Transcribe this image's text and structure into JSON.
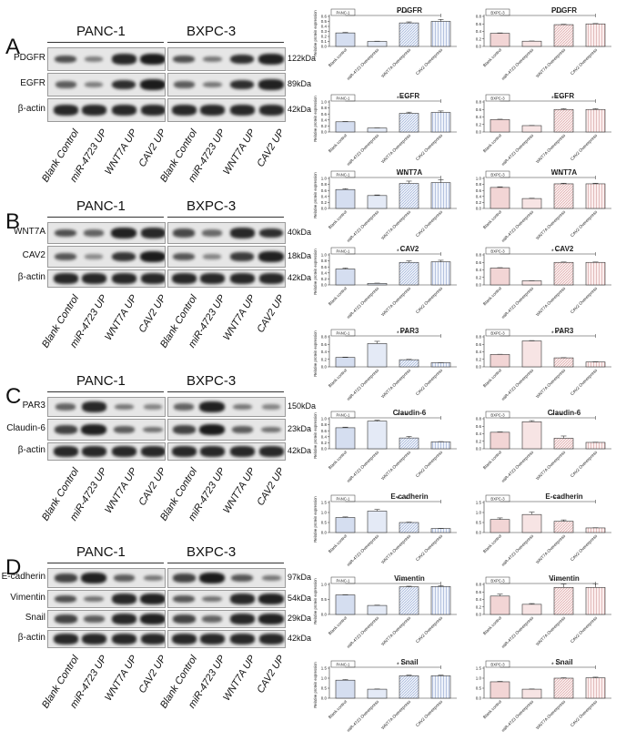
{
  "panels": [
    {
      "letter": "A",
      "cells": [
        "PANC-1",
        "BXPC-3"
      ],
      "rows": [
        {
          "label": "PDGFR",
          "kda": "122kDa",
          "pattern": [
            0.6,
            0.25,
            0.9,
            1.0,
            0.6,
            0.3,
            0.85,
            0.95
          ]
        },
        {
          "label": "EGFR",
          "kda": "89kDa",
          "pattern": [
            0.5,
            0.25,
            0.85,
            1.0,
            0.5,
            0.3,
            0.85,
            0.95
          ]
        },
        {
          "label": "β-actin",
          "kda": "42kDa",
          "pattern": [
            0.9,
            0.9,
            0.9,
            0.9,
            0.9,
            0.9,
            0.9,
            0.9
          ]
        }
      ],
      "lanes": [
        "Blank Control",
        "miR-4723 UP",
        "WNT7A UP",
        "CAV2 UP"
      ]
    },
    {
      "letter": "B",
      "cells": [
        "PANC-1",
        "BXPC-3"
      ],
      "rows": [
        {
          "label": "WNT7A",
          "kda": "40kDa",
          "pattern": [
            0.6,
            0.45,
            0.95,
            0.9,
            0.65,
            0.4,
            0.9,
            0.85
          ]
        },
        {
          "label": "CAV2",
          "kda": "18kDa",
          "pattern": [
            0.55,
            0.15,
            0.8,
            1.0,
            0.55,
            0.2,
            0.75,
            0.95
          ]
        },
        {
          "label": "β-actin",
          "kda": "42kDa",
          "pattern": [
            0.9,
            0.9,
            0.9,
            0.9,
            0.9,
            0.9,
            0.9,
            0.9
          ]
        }
      ],
      "lanes": [
        "Blank Control",
        "miR-4723 UP",
        "WNT7A UP",
        "CAV2 UP"
      ]
    },
    {
      "letter": "C",
      "cells": [
        "PANC-1",
        "BXPC-3"
      ],
      "rows": [
        {
          "label": "PAR3",
          "kda": "150kDa",
          "pattern": [
            0.45,
            0.9,
            0.3,
            0.2,
            0.45,
            0.95,
            0.3,
            0.2
          ]
        },
        {
          "label": "Claudin-6",
          "kda": "23kDa",
          "pattern": [
            0.7,
            0.95,
            0.5,
            0.35,
            0.7,
            1.0,
            0.5,
            0.35
          ]
        },
        {
          "label": "β-actin",
          "kda": "42kDa",
          "pattern": [
            0.9,
            0.9,
            0.9,
            0.9,
            0.9,
            0.9,
            0.9,
            0.9
          ]
        }
      ],
      "lanes": [
        "Blank Control",
        "miR-4723 UP",
        "WNT7A UP",
        "CAV2 UP"
      ]
    },
    {
      "letter": "D",
      "cells": [
        "PANC-1",
        "BXPC-3"
      ],
      "rows": [
        {
          "label": "E-cadherin",
          "kda": "97kDa",
          "pattern": [
            0.7,
            0.95,
            0.5,
            0.3,
            0.7,
            1.0,
            0.55,
            0.3
          ]
        },
        {
          "label": "Vimentin",
          "kda": "54kDa",
          "pattern": [
            0.6,
            0.35,
            0.9,
            0.95,
            0.55,
            0.35,
            0.9,
            0.95
          ]
        },
        {
          "label": "Snail",
          "kda": "29kDa",
          "pattern": [
            0.7,
            0.5,
            0.9,
            0.95,
            0.7,
            0.45,
            0.9,
            0.95
          ]
        },
        {
          "label": "β-actin",
          "kda": "42kDa",
          "pattern": [
            0.9,
            0.9,
            0.9,
            0.9,
            0.9,
            0.9,
            0.9,
            0.9
          ]
        }
      ],
      "lanes": [
        "Blank Control",
        "miR-4723 UP",
        "WNT7A UP",
        "CAV2 UP"
      ]
    }
  ],
  "chart_data": [
    {
      "type": "bar",
      "title": "PDGFR",
      "tag": "PANC-1",
      "ylabel": "Relative protein expression",
      "ylim": [
        0,
        0.6
      ],
      "yticks": [
        "0.0",
        "0.1",
        "0.2",
        "0.3",
        "0.4",
        "0.5",
        "0.6"
      ],
      "categories": [
        "Blank control",
        "miR-4723 Overexpress",
        "WNT7A Overexpress",
        "CAV2 Overexpress"
      ],
      "values": [
        0.27,
        0.1,
        0.47,
        0.5
      ],
      "errors": [
        0.01,
        0.005,
        0.02,
        0.04
      ],
      "sig": "* * *",
      "color": "#b8c8e6"
    },
    {
      "type": "bar",
      "title": "PDGFR",
      "tag": "BXPC-3",
      "ylabel": "",
      "ylim": [
        0,
        0.8
      ],
      "yticks": [
        "0.0",
        "0.2",
        "0.4",
        "0.6",
        "0.8"
      ],
      "categories": [
        "Blank control",
        "miR-4723 Overexpress",
        "WNT7A Overexpress",
        "CAV2 Overexpress"
      ],
      "values": [
        0.35,
        0.14,
        0.58,
        0.6
      ],
      "errors": [
        0.01,
        0.005,
        0.01,
        0.01
      ],
      "sig": "* * *",
      "color": "#e8b8b8"
    },
    {
      "type": "bar",
      "title": "EGFR",
      "tag": "PANC-1",
      "ylabel": "Relative protein expression",
      "ylim": [
        0,
        1.0
      ],
      "yticks": [
        "0.0",
        "0.2",
        "0.4",
        "0.6",
        "0.8",
        "1.0"
      ],
      "categories": [
        "Blank control",
        "miR-4723 Overexpress",
        "WNT7A Overexpress",
        "CAV2 Overexpress"
      ],
      "values": [
        0.34,
        0.13,
        0.62,
        0.65
      ],
      "errors": [
        0.01,
        0.005,
        0.04,
        0.05
      ],
      "sig": "* * *",
      "color": "#b8c8e6"
    },
    {
      "type": "bar",
      "title": "EGFR",
      "tag": "BXPC-3",
      "ylabel": "",
      "ylim": [
        0,
        0.8
      ],
      "yticks": [
        "0.0",
        "0.2",
        "0.4",
        "0.6",
        "0.8"
      ],
      "categories": [
        "Blank control",
        "miR-4723 Overexpress",
        "WNT7A Overexpress",
        "CAV2 Overexpress"
      ],
      "values": [
        0.33,
        0.17,
        0.6,
        0.6
      ],
      "errors": [
        0.01,
        0.005,
        0.02,
        0.02
      ],
      "sig": "* * *",
      "color": "#e8b8b8"
    },
    {
      "type": "bar",
      "title": "WNT7A",
      "tag": "PANC-1",
      "ylabel": "Relative protein expression",
      "ylim": [
        0,
        1.0
      ],
      "yticks": [
        "0.0",
        "0.2",
        "0.4",
        "0.6",
        "0.8",
        "1.0"
      ],
      "categories": [
        "Blank control",
        "miR-4723 Overexpress",
        "WNT7A Overexpress",
        "CAV2 Overexpress"
      ],
      "values": [
        0.63,
        0.43,
        0.83,
        0.86
      ],
      "errors": [
        0.03,
        0.02,
        0.08,
        0.1
      ],
      "sig": "* * *",
      "color": "#b8c8e6"
    },
    {
      "type": "bar",
      "title": "WNT7A",
      "tag": "BXPC-3",
      "ylabel": "",
      "ylim": [
        0,
        1.0
      ],
      "yticks": [
        "0.0",
        "0.2",
        "0.4",
        "0.6",
        "0.8",
        "1.0"
      ],
      "categories": [
        "Blank control",
        "miR-4723 Overexpress",
        "WNT7A Overexpress",
        "CAV2 Overexpress"
      ],
      "values": [
        0.7,
        0.33,
        0.82,
        0.82
      ],
      "errors": [
        0.02,
        0.01,
        0.02,
        0.02
      ],
      "sig": "* * *",
      "color": "#e8b8b8"
    },
    {
      "type": "bar",
      "title": "CAV2",
      "tag": "PANC-1",
      "ylabel": "Relative protein expression",
      "ylim": [
        0,
        1.0
      ],
      "yticks": [
        "0.0",
        "0.2",
        "0.4",
        "0.6",
        "0.8",
        "1.0"
      ],
      "categories": [
        "Blank control",
        "miR-4723 Overexpress",
        "WNT7A Overexpress",
        "CAV2 Overexpress"
      ],
      "values": [
        0.53,
        0.05,
        0.75,
        0.77
      ],
      "errors": [
        0.03,
        0.01,
        0.05,
        0.05
      ],
      "sig": "* * *",
      "color": "#b8c8e6"
    },
    {
      "type": "bar",
      "title": "CAV2",
      "tag": "BXPC-3",
      "ylabel": "",
      "ylim": [
        0,
        0.8
      ],
      "yticks": [
        "0.0",
        "0.2",
        "0.4",
        "0.6",
        "0.8"
      ],
      "categories": [
        "Blank control",
        "miR-4723 Overexpress",
        "WNT7A Overexpress",
        "CAV2 Overexpress"
      ],
      "values": [
        0.45,
        0.11,
        0.6,
        0.6
      ],
      "errors": [
        0.01,
        0.005,
        0.01,
        0.01
      ],
      "sig": "* * *",
      "color": "#e8b8b8"
    },
    {
      "type": "bar",
      "title": "PAR3",
      "tag": "PANC-1",
      "ylabel": "Relative protein expression",
      "ylim": [
        0,
        0.8
      ],
      "yticks": [
        "0.0",
        "0.2",
        "0.4",
        "0.6",
        "0.8"
      ],
      "categories": [
        "Blank control",
        "miR-4723 Overexpress",
        "WNT7A Overexpress",
        "CAV2 Overexpress"
      ],
      "values": [
        0.25,
        0.62,
        0.19,
        0.11
      ],
      "errors": [
        0.01,
        0.06,
        0.01,
        0.005
      ],
      "sig": "* * *",
      "color": "#b8c8e6"
    },
    {
      "type": "bar",
      "title": "PAR3",
      "tag": "BXPC-3",
      "ylabel": "",
      "ylim": [
        0,
        0.8
      ],
      "yticks": [
        "0.0",
        "0.2",
        "0.4",
        "0.6",
        "0.8"
      ],
      "categories": [
        "Blank control",
        "miR-4723 Overexpress",
        "WNT7A Overexpress",
        "CAV2 Overexpress"
      ],
      "values": [
        0.33,
        0.69,
        0.24,
        0.13
      ],
      "errors": [
        0.005,
        0.01,
        0.005,
        0.005
      ],
      "sig": "* * *",
      "color": "#e8b8b8"
    },
    {
      "type": "bar",
      "title": "Claudin-6",
      "tag": "PANC-1",
      "ylabel": "Relative protein expression",
      "ylim": [
        0,
        1.0
      ],
      "yticks": [
        "0.0",
        "0.2",
        "0.4",
        "0.6",
        "0.8",
        "1.0"
      ],
      "categories": [
        "Blank control",
        "miR-4723 Overexpress",
        "WNT7A Overexpress",
        "CAV2 Overexpress"
      ],
      "values": [
        0.7,
        0.92,
        0.36,
        0.23
      ],
      "errors": [
        0.02,
        0.03,
        0.05,
        0.01
      ],
      "sig": "* * *",
      "color": "#b8c8e6"
    },
    {
      "type": "bar",
      "title": "Claudin-6",
      "tag": "BXPC-3",
      "ylabel": "",
      "ylim": [
        0,
        0.8
      ],
      "yticks": [
        "0.0",
        "0.2",
        "0.4",
        "0.6",
        "0.8"
      ],
      "categories": [
        "Blank control",
        "miR-4723 Overexpress",
        "WNT7A Overexpress",
        "CAV2 Overexpress"
      ],
      "values": [
        0.44,
        0.72,
        0.28,
        0.17
      ],
      "errors": [
        0.01,
        0.03,
        0.06,
        0.005
      ],
      "sig": "* * *",
      "color": "#e8b8b8"
    },
    {
      "type": "bar",
      "title": "E-cadherin",
      "tag": "PANC-1",
      "ylabel": "Relative protein expression",
      "ylim": [
        0,
        1.5
      ],
      "yticks": [
        "0.0",
        "0.5",
        "1.0",
        "1.5"
      ],
      "categories": [
        "Blank control",
        "miR-4723 Overexpress",
        "WNT7A Overexpress",
        "CAV2 Overexpress"
      ],
      "values": [
        0.75,
        1.07,
        0.5,
        0.2
      ],
      "errors": [
        0.03,
        0.08,
        0.02,
        0.01
      ],
      "sig": "* * *",
      "color": "#b8c8e6"
    },
    {
      "type": "bar",
      "title": "E-cadherin",
      "tag": "BXPC-3",
      "ylabel": "",
      "ylim": [
        0,
        1.5
      ],
      "yticks": [
        "0.0",
        "0.5",
        "1.0",
        "1.5"
      ],
      "categories": [
        "Blank control",
        "miR-4723 Overexpress",
        "WNT7A Overexpress",
        "CAV2 Overexpress"
      ],
      "values": [
        0.65,
        0.9,
        0.56,
        0.23
      ],
      "errors": [
        0.08,
        0.12,
        0.07,
        0.01
      ],
      "sig": "* *",
      "color": "#e8b8b8"
    },
    {
      "type": "bar",
      "title": "Vimentin",
      "tag": "PANC-1",
      "ylabel": "Relative protein expression",
      "ylim": [
        0,
        1.0
      ],
      "yticks": [
        "0.0",
        "0.5",
        "1.0"
      ],
      "categories": [
        "Blank control",
        "miR-4723 Overexpress",
        "WNT7A Overexpress",
        "CAV2 Overexpress"
      ],
      "values": [
        0.65,
        0.3,
        0.92,
        0.93
      ],
      "errors": [
        0.01,
        0.01,
        0.02,
        0.03
      ],
      "sig": "* * *",
      "color": "#b8c8e6"
    },
    {
      "type": "bar",
      "title": "Vimentin",
      "tag": "BXPC-3",
      "ylabel": "",
      "ylim": [
        0,
        0.8
      ],
      "yticks": [
        "0.0",
        "0.2",
        "0.4",
        "0.6",
        "0.8"
      ],
      "categories": [
        "Blank control",
        "miR-4723 Overexpress",
        "WNT7A Overexpress",
        "CAV2 Overexpress"
      ],
      "values": [
        0.49,
        0.27,
        0.72,
        0.72
      ],
      "errors": [
        0.05,
        0.02,
        0.09,
        0.1
      ],
      "sig": "* * *",
      "color": "#e8b8b8"
    },
    {
      "type": "bar",
      "title": "Snail",
      "tag": "PANC-1",
      "ylabel": "Relative protein expression",
      "ylim": [
        0,
        1.5
      ],
      "yticks": [
        "0.0",
        "0.5",
        "1.0",
        "1.5"
      ],
      "categories": [
        "Blank control",
        "miR-4723 Overexpress",
        "WNT7A Overexpress",
        "CAV2 Overexpress"
      ],
      "values": [
        0.9,
        0.45,
        1.12,
        1.12
      ],
      "errors": [
        0.03,
        0.01,
        0.03,
        0.03
      ],
      "sig": "* * *",
      "color": "#b8c8e6"
    },
    {
      "type": "bar",
      "title": "Snail",
      "tag": "BXPC-3",
      "ylabel": "",
      "ylim": [
        0,
        1.5
      ],
      "yticks": [
        "0.0",
        "0.5",
        "1.0",
        "1.5"
      ],
      "categories": [
        "Blank control",
        "miR-4723 Overexpress",
        "WNT7A Overexpress",
        "CAV2 Overexpress"
      ],
      "values": [
        0.82,
        0.45,
        1.0,
        1.02
      ],
      "errors": [
        0.02,
        0.01,
        0.02,
        0.03
      ],
      "sig": "* * *",
      "color": "#e8b8b8"
    }
  ]
}
